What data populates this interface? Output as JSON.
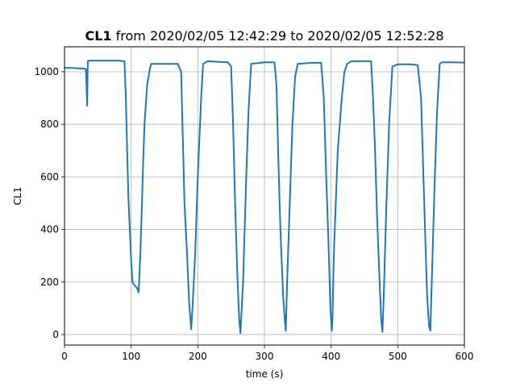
{
  "chart_data": {
    "type": "line",
    "title_bold": "CL1",
    "title_rest": " from 2020/02/05 12:42:29 to 2020/02/05 12:52:28",
    "xlabel": "time (s)",
    "ylabel": "CL1",
    "xlim": [
      0,
      600
    ],
    "ylim": [
      -40,
      1095
    ],
    "xticks": [
      0,
      100,
      200,
      300,
      400,
      500,
      600
    ],
    "yticks": [
      0,
      200,
      400,
      600,
      800,
      1000
    ],
    "grid": true,
    "series": [
      {
        "color": "#1f77b4",
        "x": [
          0,
          10,
          20,
          30,
          32,
          33,
          34,
          35,
          36,
          40,
          60,
          80,
          90,
          92,
          94,
          96,
          98,
          100,
          102,
          104,
          106,
          108,
          110,
          111,
          112,
          114,
          116,
          118,
          120,
          124,
          128,
          130,
          140,
          150,
          170,
          175,
          177,
          180,
          184,
          187,
          190,
          192,
          196,
          200,
          205,
          208,
          215,
          230,
          245,
          250,
          253,
          256,
          259,
          262,
          264,
          268,
          272,
          276,
          280,
          300,
          315,
          318,
          321,
          324,
          328,
          331,
          332,
          334,
          338,
          342,
          346,
          350,
          370,
          385,
          389,
          392,
          396,
          399,
          401,
          402,
          404,
          410,
          416,
          420,
          424,
          430,
          450,
          460,
          463,
          466,
          469,
          472,
          475,
          477,
          479,
          483,
          487,
          492,
          500,
          520,
          530,
          535,
          538,
          541,
          544,
          547,
          549,
          551,
          555,
          559,
          563,
          567,
          580,
          600
        ],
        "y": [
          1015,
          1015,
          1013,
          1012,
          1010,
          950,
          870,
          1040,
          1042,
          1042,
          1042,
          1042,
          1040,
          900,
          700,
          510,
          400,
          280,
          200,
          190,
          185,
          180,
          170,
          160,
          200,
          320,
          480,
          650,
          800,
          950,
          1010,
          1030,
          1030,
          1030,
          1030,
          1000,
          800,
          500,
          300,
          120,
          20,
          100,
          300,
          600,
          900,
          1030,
          1040,
          1038,
          1036,
          1020,
          800,
          500,
          250,
          60,
          5,
          200,
          550,
          850,
          1030,
          1036,
          1036,
          950,
          650,
          400,
          150,
          40,
          15,
          200,
          500,
          800,
          980,
          1030,
          1034,
          1034,
          900,
          650,
          350,
          100,
          15,
          50,
          300,
          700,
          900,
          1000,
          1030,
          1040,
          1040,
          1040,
          900,
          700,
          450,
          250,
          60,
          10,
          150,
          500,
          800,
          1020,
          1028,
          1028,
          1025,
          900,
          650,
          400,
          150,
          30,
          15,
          200,
          550,
          850,
          1030,
          1036,
          1036,
          1035
        ]
      }
    ]
  }
}
